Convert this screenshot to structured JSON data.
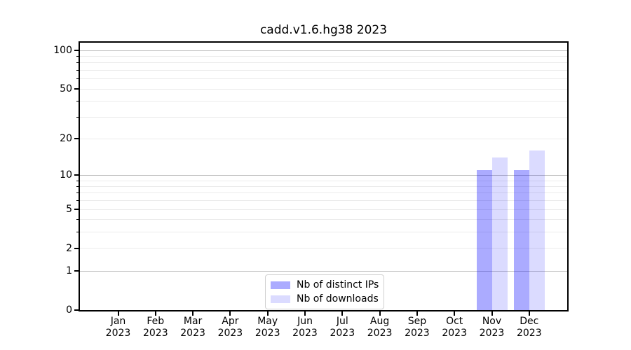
{
  "chart_data": {
    "type": "bar",
    "title": "cadd.v1.6.hg38 2023",
    "categories": [
      "Jan 2023",
      "Feb 2023",
      "Mar 2023",
      "Apr 2023",
      "May 2023",
      "Jun 2023",
      "Jul 2023",
      "Aug 2023",
      "Sep 2023",
      "Oct 2023",
      "Nov 2023",
      "Dec 2023"
    ],
    "series": [
      {
        "name": "Nb of distinct IPs",
        "color": "rgba(0,0,255,0.33)",
        "values": [
          0,
          0,
          0,
          0,
          0,
          0,
          0,
          0,
          0,
          0,
          11,
          11
        ]
      },
      {
        "name": "Nb of downloads",
        "color": "rgba(0,0,255,0.14)",
        "values": [
          0,
          0,
          0,
          0,
          0,
          0,
          0,
          0,
          0,
          0,
          14,
          16
        ]
      }
    ],
    "yscale": "log10(1+x)",
    "ylim": [
      0,
      116
    ],
    "yticks": [
      0,
      1,
      2,
      5,
      10,
      20,
      50,
      100
    ],
    "major_gridlines": [
      1,
      10,
      100
    ],
    "minor_gridlines": [
      2,
      3,
      4,
      5,
      6,
      7,
      8,
      9,
      20,
      30,
      40,
      50,
      60,
      70,
      80,
      90
    ],
    "grid": true,
    "legend_position": "lower center",
    "colors": {
      "axis": "#000000",
      "grid_major": "#bcbcbc",
      "grid_minor": "#ebebeb",
      "background": "#ffffff"
    }
  }
}
